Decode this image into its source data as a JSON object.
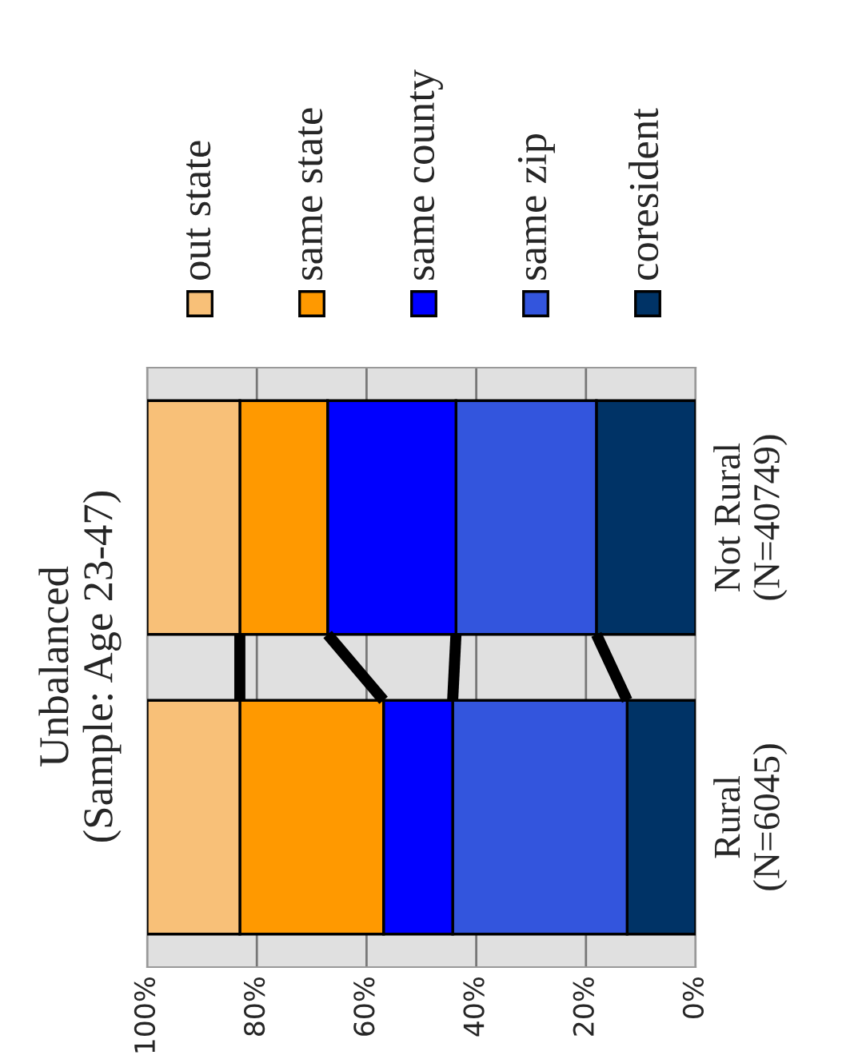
{
  "chart_data": {
    "type": "bar",
    "orientation": "horizontal",
    "stacked": true,
    "title": "Unbalanced\n(Sample: Age 23-47)",
    "categories": [
      "Not Rural\n(N=40749)",
      "Rural\n(N=6045)"
    ],
    "series": [
      {
        "name": "coresident",
        "color": "#003366",
        "values": [
          18.1,
          12.5
        ]
      },
      {
        "name": "same zip",
        "color": "#3355dd",
        "values": [
          25.6,
          31.8
        ]
      },
      {
        "name": "same county",
        "color": "#0000ff",
        "values": [
          23.4,
          12.6
        ]
      },
      {
        "name": "same state",
        "color": "#ff9900",
        "values": [
          16.0,
          26.2
        ]
      },
      {
        "name": "out state",
        "color": "#f8c078",
        "values": [
          16.9,
          16.9
        ]
      }
    ],
    "xlim": [
      100,
      0
    ],
    "xticks": [
      {
        "value": 0,
        "label": "0%"
      },
      {
        "value": 20,
        "label": "20%"
      },
      {
        "value": 40,
        "label": "40%"
      },
      {
        "value": 60,
        "label": "60%"
      },
      {
        "value": 80,
        "label": "80%"
      },
      {
        "value": 100,
        "label": "100%"
      }
    ],
    "grid": "x",
    "legend": "top"
  }
}
